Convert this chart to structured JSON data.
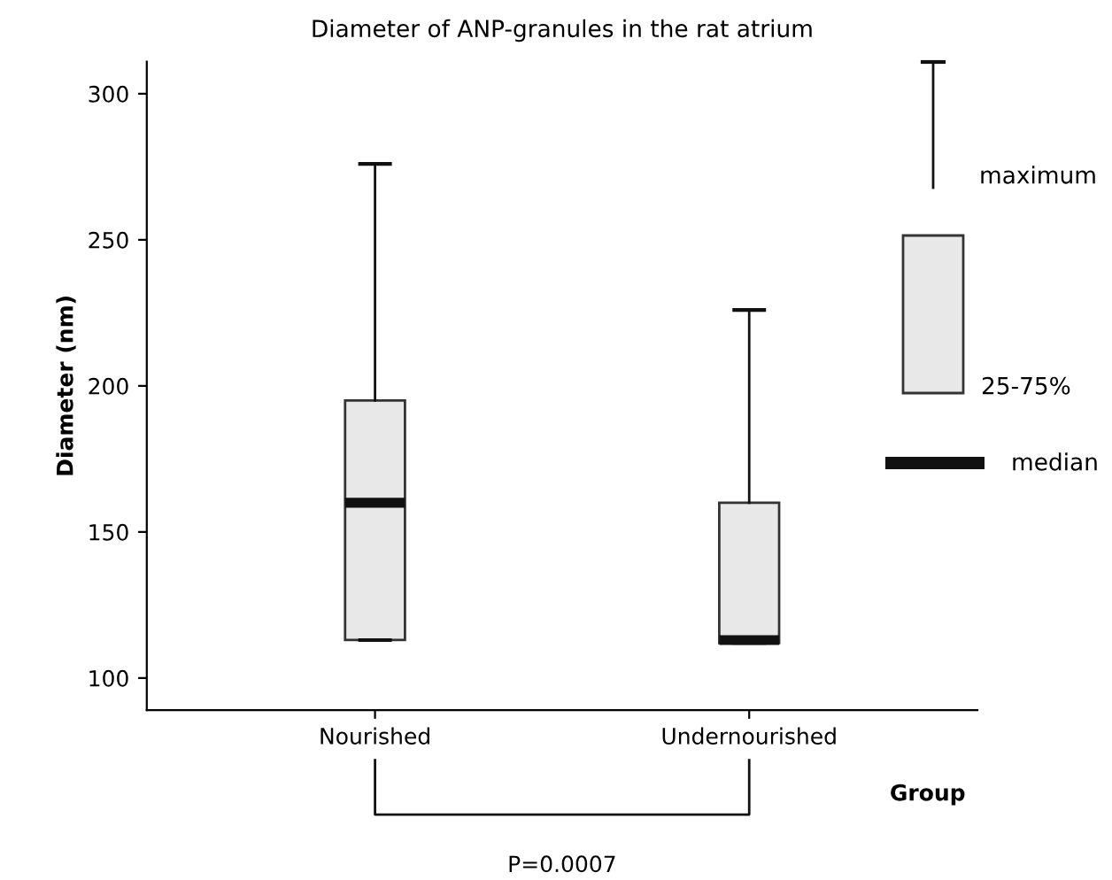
{
  "chart_data": {
    "type": "box",
    "title": "Diameter of ANP-granules in the rat atrium",
    "xlabel": "Group",
    "ylabel": "Diameter (nm)",
    "categories": [
      "Nourished",
      "Undernourished"
    ],
    "boxes": [
      {
        "low": 113,
        "q1": 113,
        "median": 160,
        "q3": 195,
        "high": 276
      },
      {
        "low": 112,
        "q1": 112,
        "median": 113,
        "q3": 160,
        "high": 226
      }
    ],
    "color": "#e8e8e8",
    "ylim": [
      89,
      311
    ],
    "yticks": [
      100,
      150,
      200,
      250,
      300
    ],
    "grid": false,
    "annotations": [
      "maximum",
      "25-75%",
      "median",
      "P=0.0007"
    ]
  }
}
